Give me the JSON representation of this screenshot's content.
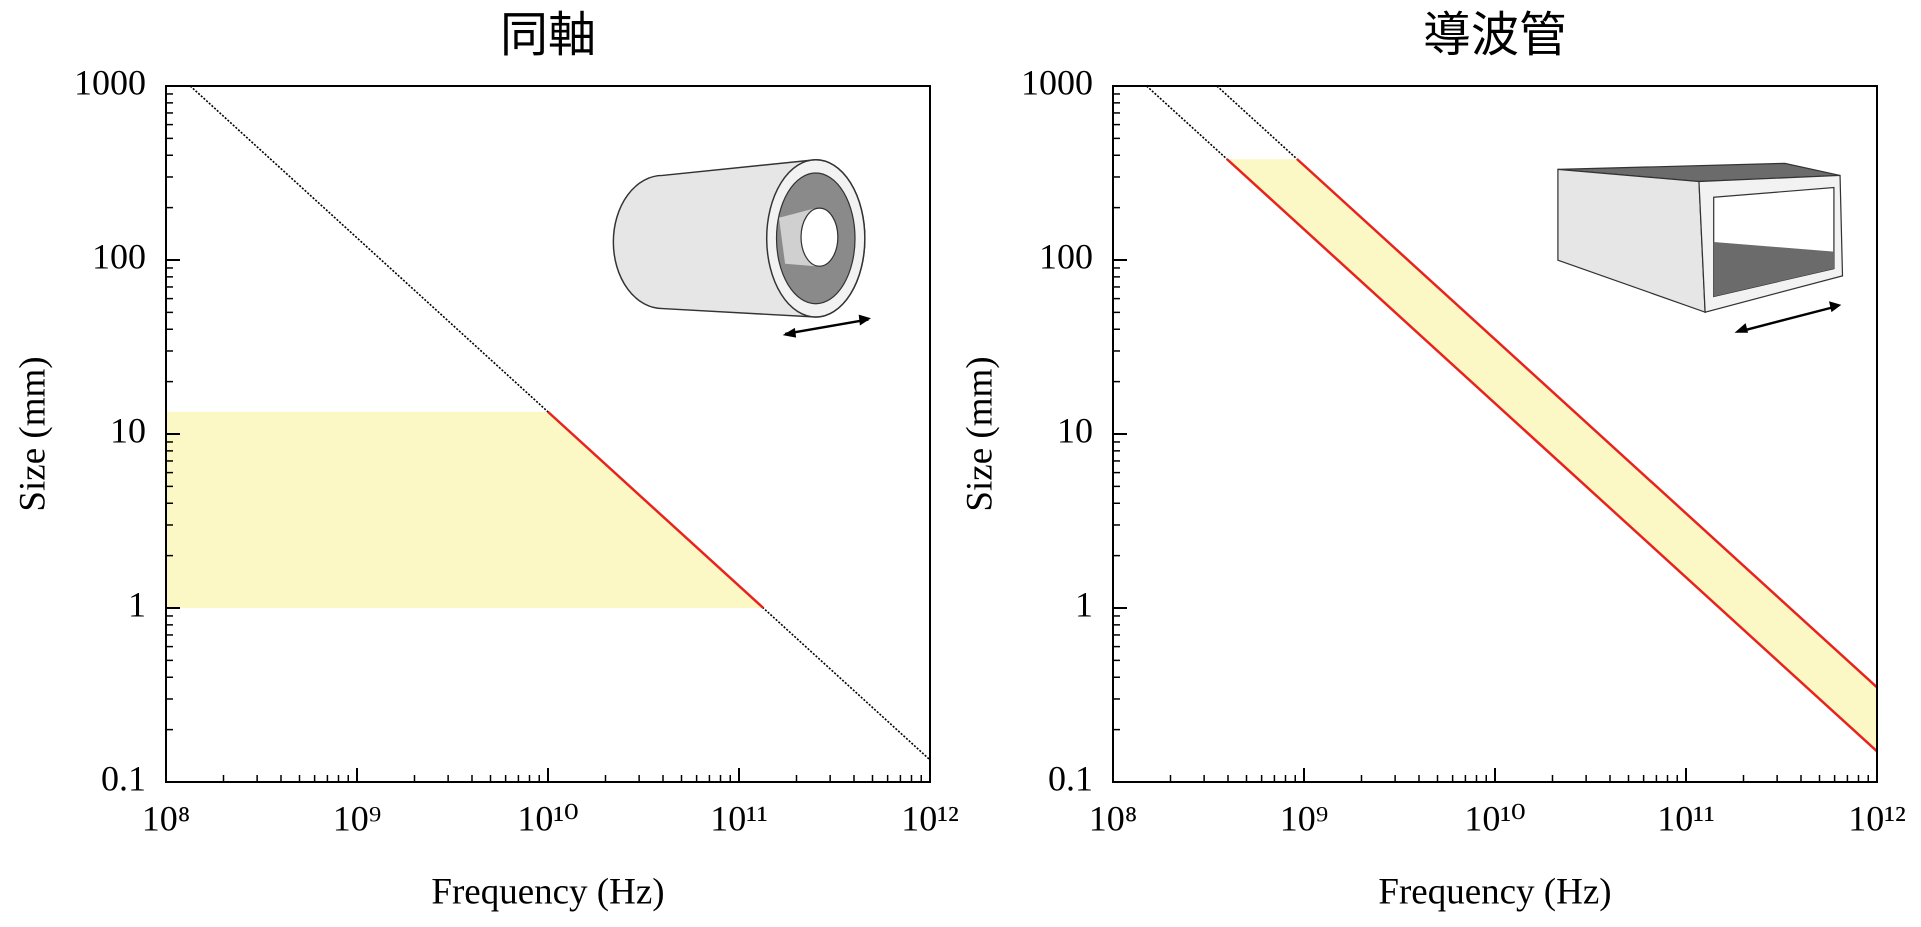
{
  "chart_data": [
    {
      "type": "line",
      "title": "同軸",
      "xlabel": "Frequency (Hz)",
      "ylabel": "Size (mm)",
      "log_x": true,
      "log_y": true,
      "minor_ticks": true,
      "xlim": [
        100000000,
        1000000000000
      ],
      "ylim": [
        0.1,
        1000
      ],
      "xticks": [
        {
          "value": 100000000,
          "label": "10⁸"
        },
        {
          "value": 1000000000,
          "label": "10⁹"
        },
        {
          "value": 10000000000,
          "label": "10¹⁰"
        },
        {
          "value": 100000000000,
          "label": "10¹¹"
        },
        {
          "value": 1000000000000,
          "label": "10¹²"
        }
      ],
      "yticks": [
        0.1,
        1,
        10,
        100,
        1000
      ],
      "bands": [
        {
          "color": "#fcf8c5",
          "x": [
            100000000,
            10000000000,
            134000000000
          ],
          "lower": [
            1,
            1,
            1
          ],
          "upper": [
            13.4,
            13.4,
            1
          ]
        }
      ],
      "series": [
        {
          "color": "#000000",
          "style": "dotted",
          "x": [
            134000000,
            1000000000000
          ],
          "values": [
            1000,
            0.134
          ]
        },
        {
          "color": "#e8231d",
          "style": "solid",
          "x": [
            10000000000,
            134000000000
          ],
          "values": [
            13.4,
            1
          ]
        }
      ]
    },
    {
      "type": "line",
      "title": "導波管",
      "xlabel": "Frequency (Hz)",
      "ylabel": "Size (mm)",
      "log_x": true,
      "log_y": true,
      "minor_ticks": true,
      "xlim": [
        100000000,
        1000000000000
      ],
      "ylim": [
        0.1,
        1000
      ],
      "xticks": [
        {
          "value": 100000000,
          "label": "10⁸"
        },
        {
          "value": 1000000000,
          "label": "10⁹"
        },
        {
          "value": 10000000000,
          "label": "10¹⁰"
        },
        {
          "value": 100000000000,
          "label": "10¹¹"
        },
        {
          "value": 1000000000000,
          "label": "10¹²"
        }
      ],
      "yticks": [
        0.1,
        1,
        10,
        100,
        1000
      ],
      "bands": [
        {
          "color": "#fcf8c5",
          "x": [
            395000000,
            920000000,
            1000000000000
          ],
          "lower": [
            380,
            163,
            0.15
          ],
          "upper": [
            380,
            380,
            0.35
          ]
        }
      ],
      "series": [
        {
          "color": "#000000",
          "style": "dotted",
          "x": [
            150000000,
            395000000
          ],
          "values": [
            1000,
            380
          ]
        },
        {
          "color": "#000000",
          "style": "dotted",
          "x": [
            350000000,
            920000000
          ],
          "values": [
            1000,
            380
          ]
        },
        {
          "color": "#e8231d",
          "style": "solid",
          "x": [
            395000000,
            1000000000000
          ],
          "values": [
            380,
            0.15
          ]
        },
        {
          "color": "#e8231d",
          "style": "solid",
          "x": [
            920000000,
            1000000000000
          ],
          "values": [
            380,
            0.35
          ]
        }
      ]
    }
  ]
}
